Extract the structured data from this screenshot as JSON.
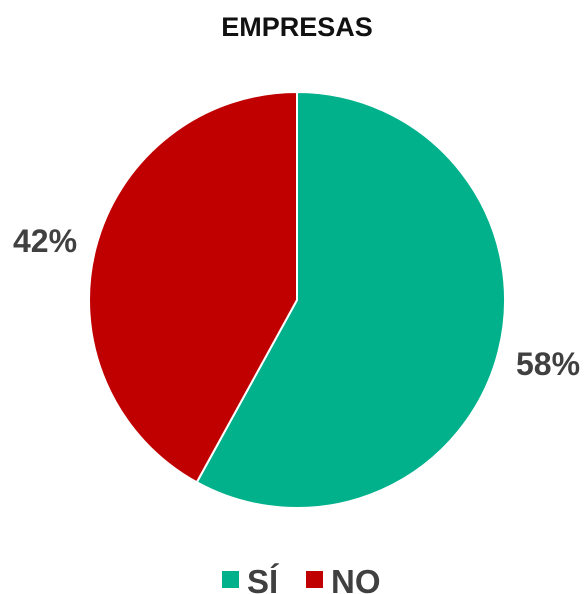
{
  "chart_data": {
    "type": "pie",
    "title": "EMPRESAS",
    "slices": [
      {
        "label": "SÍ",
        "value": 58,
        "value_label": "58%",
        "color": "#00B18B"
      },
      {
        "label": "NO",
        "value": 42,
        "value_label": "42%",
        "color": "#C00000"
      }
    ],
    "start": "12 o'clock",
    "direction": "clockwise",
    "legend_position": "bottom"
  }
}
